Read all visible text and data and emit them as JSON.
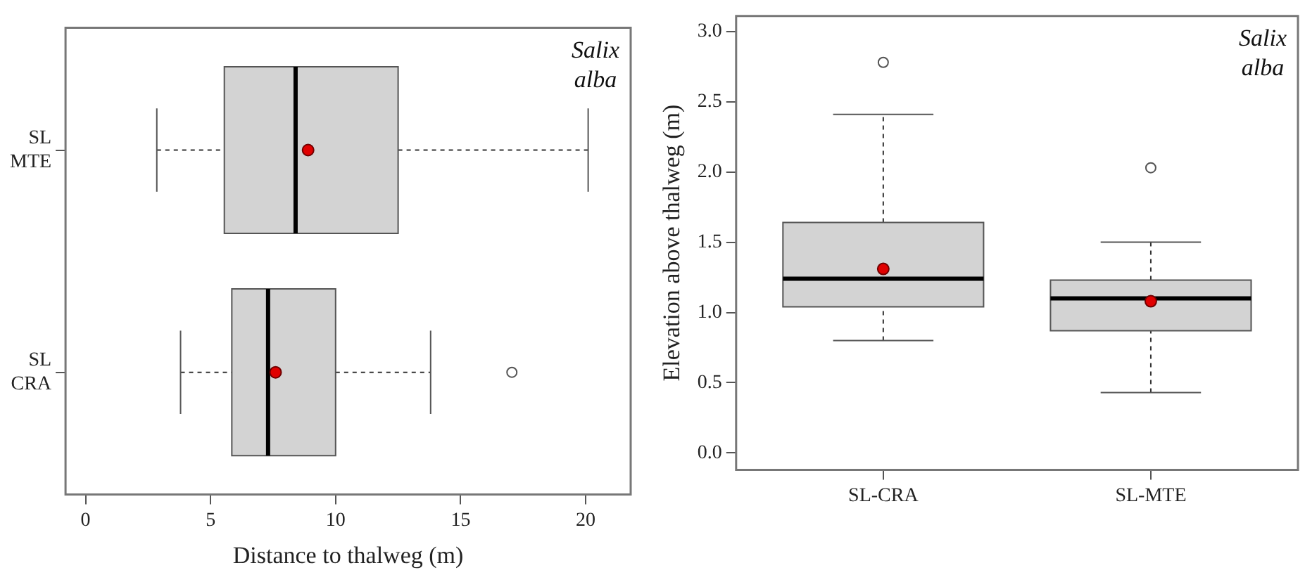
{
  "chart_data": [
    {
      "type": "box",
      "orientation": "horizontal",
      "xlabel": "Distance to thalweg (m)",
      "categories": [
        "SL\nMTE",
        "SL\nCRA"
      ],
      "xlim": [
        -0.8,
        21.8
      ],
      "xticks": [
        0,
        5,
        10,
        15,
        20
      ],
      "grid": false,
      "legend": false,
      "annotations": [
        "Salix\nalba"
      ],
      "series": [
        {
          "color": "#d3d3d3",
          "boxes": [
            {
              "low": 2.85,
              "q1": 5.55,
              "median": 8.4,
              "q3": 12.5,
              "high": 20.1,
              "mean": 8.9
            },
            {
              "low": 3.8,
              "q1": 5.85,
              "median": 7.3,
              "q3": 10.0,
              "high": 13.8,
              "mean": 7.6,
              "outliers": [
                17.05
              ]
            }
          ]
        }
      ]
    },
    {
      "type": "box",
      "ylabel": "Elevation above thalweg (m)",
      "categories": [
        "SL-CRA",
        "SL-MTE"
      ],
      "ylim": [
        -0.12,
        3.11
      ],
      "yticks": [
        {
          "value": 0,
          "label": "0.0"
        },
        {
          "value": 0.5,
          "label": "0.5"
        },
        {
          "value": 1,
          "label": "1.0"
        },
        {
          "value": 1.5,
          "label": "1.5"
        },
        {
          "value": 2,
          "label": "2.0"
        },
        {
          "value": 2.5,
          "label": "2.5"
        },
        {
          "value": 3,
          "label": "3.0"
        }
      ],
      "grid": false,
      "legend": false,
      "annotations": [
        "Salix\nalba"
      ],
      "series": [
        {
          "color": "#d3d3d3",
          "boxes": [
            {
              "low": 0.8,
              "q1": 1.04,
              "median": 1.24,
              "q3": 1.64,
              "high": 2.41,
              "mean": 1.31,
              "outliers": [
                2.78
              ]
            },
            {
              "low": 0.43,
              "q1": 0.87,
              "median": 1.1,
              "q3": 1.23,
              "high": 1.5,
              "mean": 1.08,
              "outliers": [
                2.03
              ]
            }
          ]
        }
      ]
    }
  ]
}
